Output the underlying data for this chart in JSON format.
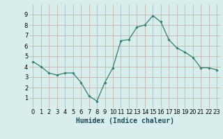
{
  "x": [
    0,
    1,
    2,
    3,
    4,
    5,
    6,
    7,
    8,
    9,
    10,
    11,
    12,
    13,
    14,
    15,
    16,
    17,
    18,
    19,
    20,
    21,
    22,
    23
  ],
  "y": [
    4.5,
    4.0,
    3.4,
    3.2,
    3.4,
    3.4,
    2.5,
    1.2,
    0.7,
    2.5,
    3.9,
    6.5,
    6.6,
    7.8,
    8.0,
    8.9,
    8.3,
    6.6,
    5.8,
    5.4,
    4.9,
    3.9,
    3.9,
    3.7
  ],
  "line_color": "#2e7f6e",
  "marker": "D",
  "marker_size": 1.8,
  "bg_color": "#d8eeed",
  "grid_color": "#c0a8a8",
  "xlabel": "Humidex (Indice chaleur)",
  "xlabel_fontsize": 7,
  "tick_fontsize": 6,
  "ylim": [
    0,
    10
  ],
  "xlim": [
    -0.5,
    23.5
  ],
  "yticks": [
    1,
    2,
    3,
    4,
    5,
    6,
    7,
    8,
    9
  ],
  "xticks": [
    0,
    1,
    2,
    3,
    4,
    5,
    6,
    7,
    8,
    9,
    10,
    11,
    12,
    13,
    14,
    15,
    16,
    17,
    18,
    19,
    20,
    21,
    22,
    23
  ],
  "linewidth": 0.9,
  "xlabel_color": "#1a4a5a"
}
